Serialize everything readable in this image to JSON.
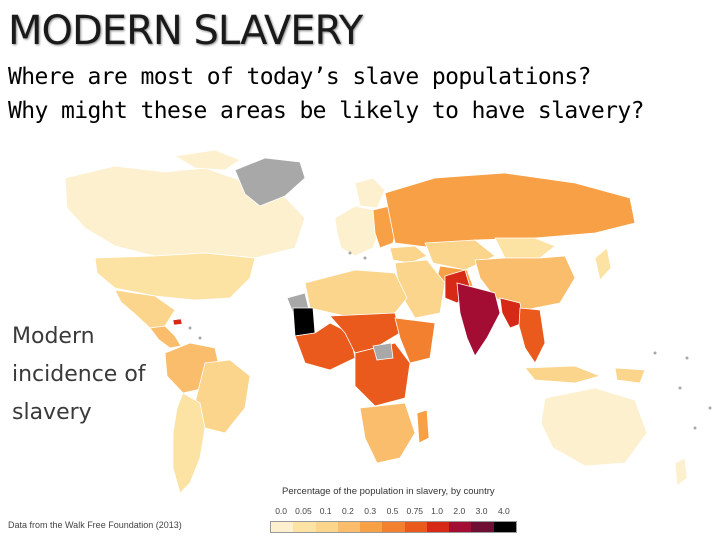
{
  "slide": {
    "title": "MODERN SLAVERY",
    "question_1": "Where are most of today’s slave populations?",
    "question_2": "Why might these areas be likely to have slavery?"
  },
  "map": {
    "label_line1": "Modern",
    "label_line2": "incidence of",
    "label_line3": "slavery",
    "source": "Data from the Walk Free Foundation (2013)",
    "no_data_color": "#a8a8a8",
    "legend": {
      "title": "Percentage of the population in slavery, by country",
      "ticks": [
        "0.0",
        "0.05",
        "0.1",
        "0.2",
        "0.3",
        "0.5",
        "0.75",
        "1.0",
        "2.0",
        "3.0",
        "4.0"
      ],
      "colors": [
        "#fdf0cf",
        "#fce3a4",
        "#fad58b",
        "#f9bd6b",
        "#f7a045",
        "#f2802e",
        "#ea5a1c",
        "#d62a16",
        "#a40d33",
        "#6e0e33",
        "#000000"
      ]
    }
  }
}
